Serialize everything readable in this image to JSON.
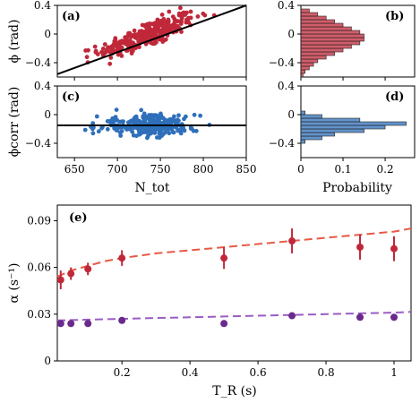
{
  "chart_data": [
    {
      "id": "a",
      "type": "scatter",
      "panel_label": "(a)",
      "ylabel": "ϕ (rad)",
      "xlabel": "",
      "xlim": [
        630,
        850
      ],
      "ylim": [
        -0.6,
        0.4
      ],
      "xticks": [
        650,
        700,
        750,
        800,
        850
      ],
      "yticks": [
        0.4,
        0,
        -0.4
      ],
      "ytick_labels": [
        "0.4",
        "0",
        "−0.4"
      ],
      "color": "#c0283a",
      "fit_line": {
        "x": [
          630,
          850
        ],
        "y": [
          -0.56,
          0.4
        ],
        "color": "#000000"
      },
      "points": {
        "n": 300,
        "x_center": 735,
        "x_sd": 28,
        "slope": 0.0044,
        "y_center": -0.015,
        "y_sd": 0.09
      }
    },
    {
      "id": "b",
      "type": "bar",
      "orientation": "horizontal",
      "panel_label": "(b)",
      "xlim": [
        0,
        0.27
      ],
      "ylim": [
        -0.6,
        0.4
      ],
      "yticks": [
        0.4,
        0,
        -0.4
      ],
      "ytick_labels": [
        "0.4",
        "0",
        "−0.4"
      ],
      "color": "#c0283a",
      "bins": [
        -0.6,
        -0.55,
        -0.5,
        -0.45,
        -0.4,
        -0.35,
        -0.3,
        -0.25,
        -0.2,
        -0.15,
        -0.1,
        -0.05,
        0.0,
        0.05,
        0.1,
        0.15,
        0.2,
        0.25,
        0.3
      ],
      "values": [
        0.005,
        0.01,
        0.02,
        0.03,
        0.04,
        0.06,
        0.08,
        0.1,
        0.12,
        0.14,
        0.15,
        0.15,
        0.14,
        0.12,
        0.1,
        0.08,
        0.06,
        0.04,
        0.02
      ]
    },
    {
      "id": "c",
      "type": "scatter",
      "panel_label": "(c)",
      "ylabel": "ϕcorr (rad)",
      "xlabel": "N_tot",
      "xlim": [
        630,
        850
      ],
      "ylim": [
        -0.6,
        0.4
      ],
      "xticks": [
        650,
        700,
        750,
        800,
        850
      ],
      "xtick_labels": [
        "650",
        "700",
        "750",
        "800",
        "850"
      ],
      "yticks": [
        0.4,
        0,
        -0.4
      ],
      "ytick_labels": [
        "0.4",
        "0",
        "−0.4"
      ],
      "color": "#2f6fba",
      "fit_line": {
        "x": [
          630,
          850
        ],
        "y": [
          -0.15,
          -0.15
        ],
        "color": "#000000"
      },
      "points": {
        "n": 300,
        "x_center": 735,
        "x_sd": 28,
        "slope": 0,
        "y_center": -0.15,
        "y_sd": 0.07
      }
    },
    {
      "id": "d",
      "type": "bar",
      "orientation": "horizontal",
      "panel_label": "(d)",
      "xlabel": "Probability",
      "xlim": [
        0,
        0.27
      ],
      "ylim": [
        -0.6,
        0.4
      ],
      "xticks": [
        0,
        0.1,
        0.2
      ],
      "xtick_labels": [
        "0",
        "0.1",
        "0.2"
      ],
      "yticks": [
        0.4,
        0,
        -0.4
      ],
      "ytick_labels": [
        "0.4",
        "0",
        "−0.4"
      ],
      "color": "#2f6fba",
      "bins": [
        -0.4,
        -0.35,
        -0.3,
        -0.25,
        -0.2,
        -0.15,
        -0.1,
        -0.05,
        0.0
      ],
      "values": [
        0.01,
        0.05,
        0.08,
        0.15,
        0.2,
        0.25,
        0.14,
        0.05,
        0.01
      ]
    },
    {
      "id": "e",
      "type": "line",
      "panel_label": "(e)",
      "xlabel": "T_R (s)",
      "ylabel": "α (s⁻¹)",
      "xlim": [
        0.01,
        1.05
      ],
      "ylim": [
        0,
        0.1
      ],
      "xticks": [
        0.2,
        0.4,
        0.6,
        0.8,
        1
      ],
      "xtick_labels": [
        "0.2",
        "0.4",
        "0.6",
        "0.8",
        "1"
      ],
      "yticks": [
        0,
        0.03,
        0.06,
        0.09
      ],
      "ytick_labels": [
        "0",
        "0.03",
        "0.06",
        "0.09"
      ],
      "series": [
        {
          "color": "#c0283a",
          "line_color": "#e65a45",
          "points": [
            {
              "x": 0.02,
              "y": 0.052,
              "err": 0.006
            },
            {
              "x": 0.05,
              "y": 0.056,
              "err": 0.004
            },
            {
              "x": 0.1,
              "y": 0.059,
              "err": 0.004
            },
            {
              "x": 0.2,
              "y": 0.066,
              "err": 0.005
            },
            {
              "x": 0.5,
              "y": 0.066,
              "err": 0.007
            },
            {
              "x": 0.7,
              "y": 0.077,
              "err": 0.008
            },
            {
              "x": 0.9,
              "y": 0.073,
              "err": 0.008
            },
            {
              "x": 1.0,
              "y": 0.072,
              "err": 0.008
            }
          ],
          "curve": {
            "x": [
              0.01,
              0.05,
              0.1,
              0.15,
              0.2,
              0.3,
              0.4,
              0.5,
              0.6,
              0.7,
              0.8,
              0.9,
              1.0,
              1.05
            ],
            "y": [
              0.054,
              0.058,
              0.061,
              0.064,
              0.066,
              0.069,
              0.071,
              0.073,
              0.075,
              0.077,
              0.079,
              0.081,
              0.083,
              0.085
            ]
          }
        },
        {
          "color": "#6a2a8c",
          "line_color": "#9a5cc4",
          "points": [
            {
              "x": 0.02,
              "y": 0.024,
              "err": 0.002
            },
            {
              "x": 0.05,
              "y": 0.024,
              "err": 0.002
            },
            {
              "x": 0.1,
              "y": 0.024,
              "err": 0.002
            },
            {
              "x": 0.2,
              "y": 0.026,
              "err": 0.002
            },
            {
              "x": 0.5,
              "y": 0.024,
              "err": 0.002
            },
            {
              "x": 0.7,
              "y": 0.029,
              "err": 0.002
            },
            {
              "x": 0.9,
              "y": 0.028,
              "err": 0.002
            },
            {
              "x": 1.0,
              "y": 0.028,
              "err": 0.002
            }
          ],
          "curve": {
            "x": [
              0.01,
              0.1,
              0.2,
              0.3,
              0.4,
              0.5,
              0.6,
              0.7,
              0.8,
              0.9,
              1.0,
              1.05
            ],
            "y": [
              0.026,
              0.0265,
              0.027,
              0.0275,
              0.028,
              0.0285,
              0.029,
              0.0295,
              0.03,
              0.0305,
              0.031,
              0.0315
            ]
          }
        }
      ]
    }
  ]
}
